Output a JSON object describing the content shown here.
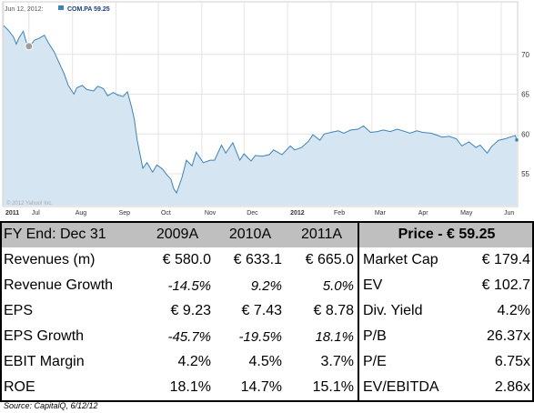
{
  "chart_data": {
    "type": "area",
    "ticker_label": "COM.PA 59.25",
    "date_label": "Jun 12, 2012:",
    "watermark": "© 2012 Yahoo! Inc.",
    "x_tick_labels": [
      "2011",
      "Jul",
      "Aug",
      "Sep",
      "Oct",
      "Nov",
      "Dec",
      "2012",
      "Feb",
      "Mar",
      "Apr",
      "May",
      "Jun"
    ],
    "y_tick_labels": [
      "70",
      "65",
      "60",
      "55"
    ],
    "ylim": [
      51,
      75
    ],
    "grid": true,
    "x": [
      "2011-06-13",
      "2011-06-16",
      "2011-06-20",
      "2011-06-22",
      "2011-06-24",
      "2011-06-27",
      "2011-06-29",
      "2011-07-01",
      "2011-07-05",
      "2011-07-08",
      "2011-07-12",
      "2011-07-15",
      "2011-07-19",
      "2011-07-22",
      "2011-07-26",
      "2011-07-29",
      "2011-08-02",
      "2011-08-04",
      "2011-08-08",
      "2011-08-11",
      "2011-08-16",
      "2011-08-19",
      "2011-08-23",
      "2011-08-26",
      "2011-08-30",
      "2011-09-02",
      "2011-09-06",
      "2011-09-09",
      "2011-09-12",
      "2011-09-14",
      "2011-09-16",
      "2011-09-20",
      "2011-09-23",
      "2011-09-27",
      "2011-09-30",
      "2011-10-04",
      "2011-10-07",
      "2011-10-10",
      "2011-10-12",
      "2011-10-14",
      "2011-10-18",
      "2011-10-21",
      "2011-10-25",
      "2011-10-28",
      "2011-11-02",
      "2011-11-07",
      "2011-11-10",
      "2011-11-15",
      "2011-11-18",
      "2011-11-23",
      "2011-11-28",
      "2011-12-01",
      "2011-12-06",
      "2011-12-09",
      "2011-12-14",
      "2011-12-19",
      "2011-12-22",
      "2011-12-28",
      "2012-01-03",
      "2012-01-06",
      "2012-01-11",
      "2012-01-16",
      "2012-01-19",
      "2012-01-24",
      "2012-01-27",
      "2012-02-01",
      "2012-02-06",
      "2012-02-10",
      "2012-02-15",
      "2012-02-20",
      "2012-02-24",
      "2012-02-29",
      "2012-03-05",
      "2012-03-09",
      "2012-03-14",
      "2012-03-19",
      "2012-03-23",
      "2012-03-28",
      "2012-04-02",
      "2012-04-06",
      "2012-04-12",
      "2012-04-17",
      "2012-04-20",
      "2012-04-25",
      "2012-04-30",
      "2012-05-04",
      "2012-05-09",
      "2012-05-14",
      "2012-05-17",
      "2012-05-22",
      "2012-05-25",
      "2012-05-30",
      "2012-06-04",
      "2012-06-07",
      "2012-06-11",
      "2012-06-12"
    ],
    "values": [
      73.6,
      73.1,
      72.2,
      71.3,
      72.1,
      72.9,
      71.6,
      70.9,
      71.8,
      72.0,
      72.4,
      71.4,
      70.3,
      69.1,
      67.6,
      66.1,
      65.0,
      65.8,
      66.1,
      65.6,
      65.4,
      66.0,
      65.7,
      64.8,
      65.2,
      64.9,
      64.7,
      65.3,
      63.4,
      61.8,
      59.2,
      55.7,
      56.4,
      55.2,
      56.1,
      55.6,
      54.9,
      54.3,
      53.1,
      52.6,
      54.6,
      56.7,
      56.0,
      57.7,
      56.4,
      56.7,
      56.7,
      58.6,
      57.6,
      58.9,
      56.7,
      57.5,
      56.6,
      57.3,
      57.2,
      57.4,
      58.0,
      57.4,
      58.5,
      58.0,
      58.3,
      59.1,
      59.9,
      59.2,
      60.0,
      60.2,
      60.4,
      60.1,
      60.5,
      60.6,
      61.0,
      60.2,
      60.3,
      60.5,
      60.3,
      60.6,
      60.4,
      60.1,
      60.4,
      60.2,
      60.1,
      59.8,
      59.6,
      59.7,
      59.4,
      58.5,
      59.0,
      58.3,
      58.6,
      57.6,
      58.4,
      59.2,
      59.4,
      59.6,
      59.8,
      59.25
    ]
  },
  "table": {
    "header": {
      "fy": "FY End: Dec 31",
      "y1": "2009A",
      "y2": "2010A",
      "y3": "2011A",
      "price": "Price - € 59.25"
    },
    "rows": [
      {
        "label": "Revenues (m)",
        "v1": "€ 580.0",
        "v2": "€ 633.1",
        "v3": "€ 665.0",
        "k": "Market Cap",
        "kv": "€ 179.4"
      },
      {
        "label": "Revenue Growth",
        "v1": "-14.5%",
        "v2": "9.2%",
        "v3": "5.0%",
        "k": "EV",
        "kv": "€ 102.7"
      },
      {
        "label": "EPS",
        "v1": "€ 9.23",
        "v2": "€ 7.43",
        "v3": "€ 8.78",
        "k": "Div. Yield",
        "kv": "4.2%"
      },
      {
        "label": "EPS Growth",
        "v1": "-45.7%",
        "v2": "-19.5%",
        "v3": "18.1%",
        "k": "P/B",
        "kv": "26.37x"
      },
      {
        "label": "EBIT Margin",
        "v1": "4.2%",
        "v2": "4.5%",
        "v3": "3.7%",
        "k": "P/E",
        "kv": "6.75x"
      },
      {
        "label": "ROE",
        "v1": "18.1%",
        "v2": "14.7%",
        "v3": "15.1%",
        "k": "EV/EBITDA",
        "kv": "2.86x"
      }
    ]
  },
  "source": "Source: CapitalQ, 6/12/12",
  "colors": {
    "line": "#3e82b6",
    "fill": "#d5e6f2",
    "grid": "#e4e4e4",
    "header_bg": "#bfbfbf"
  }
}
